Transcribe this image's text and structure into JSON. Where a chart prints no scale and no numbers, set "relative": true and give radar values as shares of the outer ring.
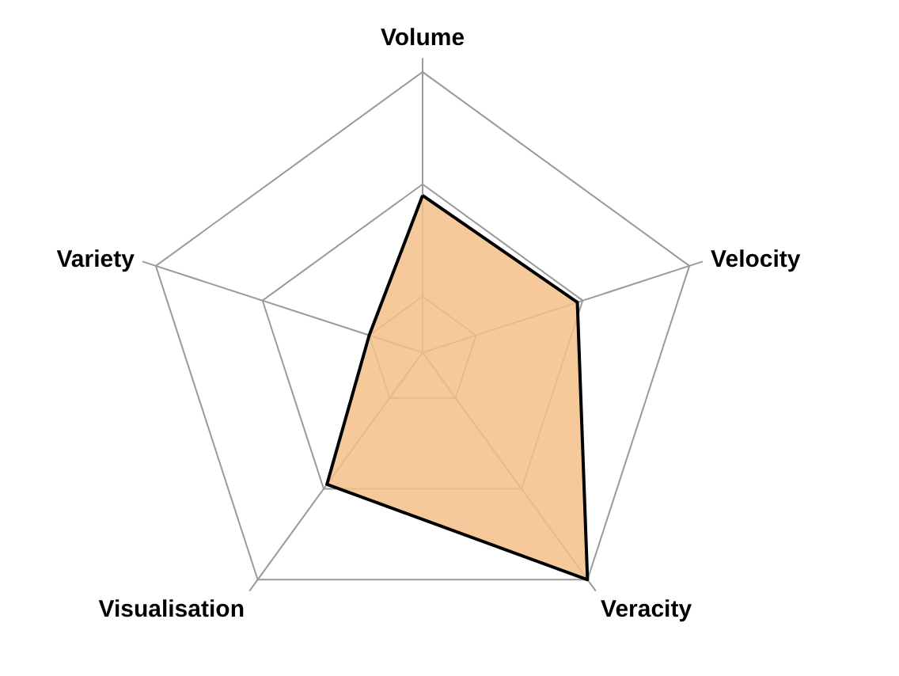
{
  "chart_data": {
    "type": "radar",
    "relative": true,
    "grid": true,
    "categories": [
      "Volume",
      "Velocity",
      "Veracity",
      "Visualisation",
      "Variety"
    ],
    "series": [
      {
        "color": "#f5c08a",
        "values": [
          0.56,
          0.58,
          1.0,
          0.58,
          0.2
        ]
      }
    ]
  }
}
